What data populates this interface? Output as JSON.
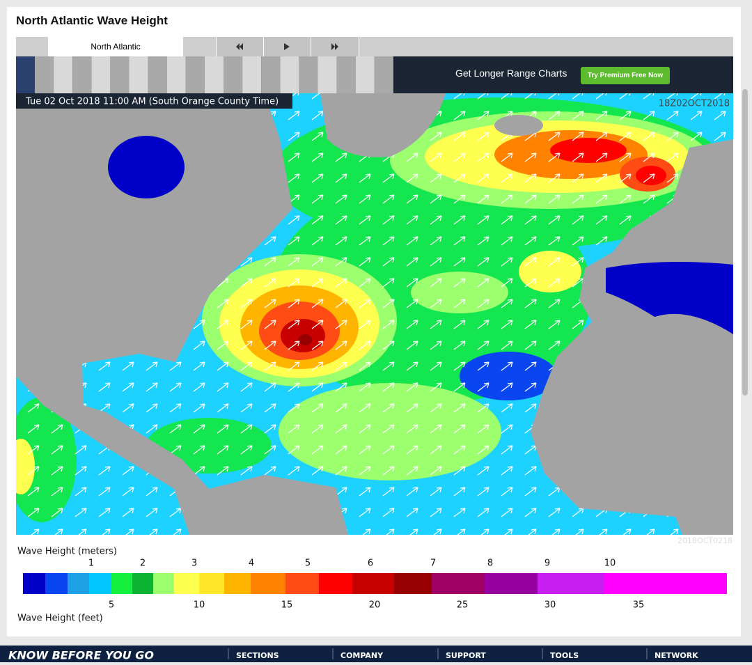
{
  "header": {
    "title": "North Atlantic Wave Height"
  },
  "tabs": [
    "North Atlantic"
  ],
  "banner": {
    "text": "Get Longer Range Charts",
    "button": "Try Premium Free Now"
  },
  "map": {
    "timestamp": "Tue 02 Oct 2018 11:00 AM (South Orange County Time)",
    "run_label": "18Z02OCT2018",
    "footer_label": "2018OCT0218"
  },
  "legend": {
    "meters_title": "Wave Height (meters)",
    "meters_ticks": [
      1,
      2,
      3,
      4,
      5,
      6,
      7,
      8,
      9,
      10
    ],
    "feet_title": "Wave Height (feet)",
    "feet_ticks": [
      5,
      10,
      15,
      20,
      25,
      30,
      35
    ],
    "colors": [
      "#0000c8",
      "#0a46f0",
      "#1ea0e6",
      "#00c8ff",
      "#14f03c",
      "#0ab432",
      "#9bff6e",
      "#ffff50",
      "#ffe628",
      "#ffb400",
      "#ff8200",
      "#ff4b14",
      "#ff0000",
      "#c80000",
      "#960000",
      "#a00064",
      "#9600a0",
      "#c81ef0",
      "#ff00ff"
    ]
  },
  "footer": {
    "slogan": "KNOW BEFORE YOU GO",
    "links": [
      "SECTIONS",
      "COMPANY",
      "SUPPORT",
      "TOOLS",
      "NETWORK"
    ]
  }
}
